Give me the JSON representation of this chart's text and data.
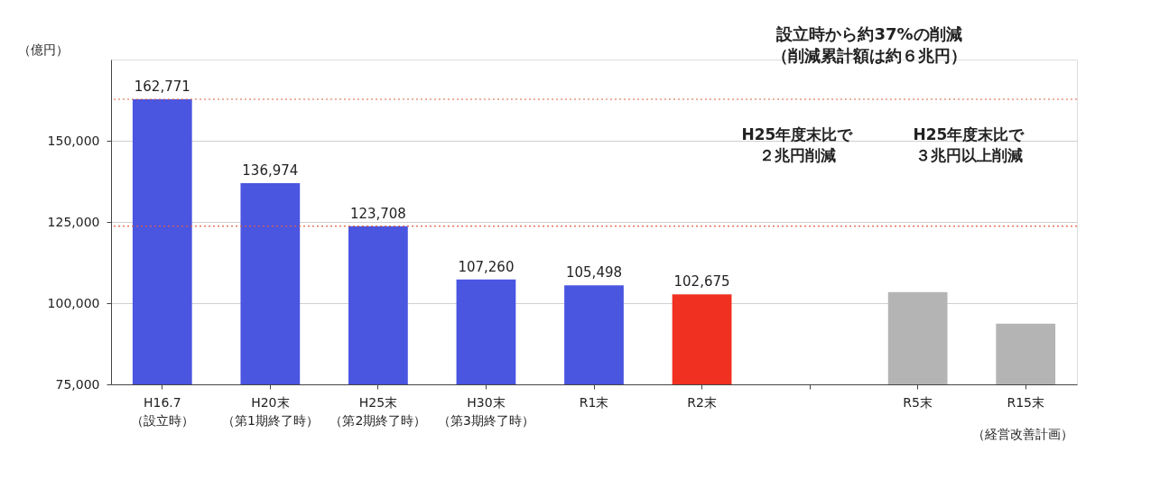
{
  "chart_data": {
    "type": "bar",
    "ylabel": "（億円）",
    "categories": [
      "H16.7（設立時）",
      "H20末（第1期終了時）",
      "H25末（第2期終了時）",
      "H30末（第3期終了時）",
      "R1末",
      "R2末",
      null,
      "R5末",
      "R15末"
    ],
    "values": [
      162771,
      136974,
      123708,
      107260,
      105498,
      102675,
      null,
      103400,
      93700
    ],
    "colors": [
      "#4a55e0",
      "#4a55e0",
      "#4a55e0",
      "#4a55e0",
      "#4a55e0",
      "#f03020",
      null,
      "#b4b4b4",
      "#b4b4b4"
    ],
    "value_labels": [
      "162,771",
      "136,974",
      "123,708",
      "107,260",
      "105,498",
      "102,675",
      null,
      null,
      null
    ],
    "ylim": [
      75000,
      175000
    ],
    "yticks": [
      {
        "value": 75000,
        "label": "75,000"
      },
      {
        "value": 100000,
        "label": "100,000"
      },
      {
        "value": 125000,
        "label": "125,000"
      },
      {
        "value": 150000,
        "label": "150,000"
      }
    ],
    "grid": "y",
    "ref_lines": [
      {
        "axis": "y",
        "value": 162771,
        "color": "#e06040",
        "line_style": "dotted"
      },
      {
        "axis": "y",
        "value": 123708,
        "color": "#e06040",
        "line_style": "dotted"
      }
    ],
    "annotations": [
      "設立時から約37%の削減（削減累計額は約６兆円）",
      "H25年度末比で２兆円削減",
      "H25年度末比で３兆円以上削減",
      "（経営改善計画）"
    ]
  }
}
